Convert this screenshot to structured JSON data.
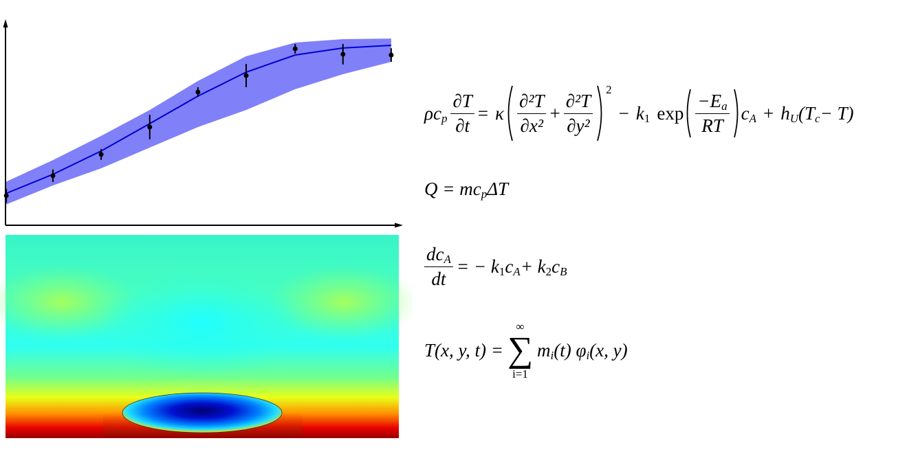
{
  "chart_data": {
    "type": "errorbar",
    "x": [
      0.002,
      0.121,
      0.244,
      0.368,
      0.491,
      0.614,
      0.739,
      0.861,
      0.984
    ],
    "values": [
      0.147,
      0.246,
      0.352,
      0.488,
      0.662,
      0.744,
      0.877,
      0.85,
      0.846
    ],
    "errors": [
      0.034,
      0.031,
      0.027,
      0.061,
      0.024,
      0.058,
      0.024,
      0.051,
      0.034
    ],
    "fit_x": [
      0,
      0.121,
      0.244,
      0.368,
      0.491,
      0.614,
      0.739,
      0.861,
      0.984
    ],
    "fit": [
      0.157,
      0.253,
      0.369,
      0.505,
      0.642,
      0.761,
      0.846,
      0.881,
      0.894
    ],
    "upper": [
      0.215,
      0.324,
      0.444,
      0.573,
      0.717,
      0.84,
      0.908,
      0.925,
      0.928
    ],
    "lower": [
      0.102,
      0.198,
      0.283,
      0.386,
      0.488,
      0.573,
      0.676,
      0.751,
      0.812
    ],
    "point_color": "#000000",
    "line_color": "#0000d0",
    "band_color": "#8080f8",
    "xlim": [
      0,
      1
    ],
    "ylim": [
      0,
      1
    ]
  },
  "equations": [
    [
      "ρc",
      "p",
      "∂T",
      "∂t",
      "=",
      "κ",
      "∂²T",
      "∂x²",
      "+",
      "∂²T",
      "∂y²",
      "2",
      "−",
      "k",
      "1",
      "exp",
      "−E",
      "a",
      "RT",
      "c",
      "A",
      "+",
      "h",
      "U",
      "(T",
      "c",
      "− T)"
    ],
    [
      "Q = mc",
      "p",
      "ΔT"
    ],
    [
      "dc",
      "A",
      "dt",
      "= − k",
      "1",
      "c",
      "A",
      "+ k",
      "2",
      "c",
      "B"
    ],
    [
      "T(x, y, t) =",
      "∞",
      "∑",
      "i=1",
      "m",
      "i",
      "(t) φ",
      "i",
      "(x, y)"
    ]
  ]
}
